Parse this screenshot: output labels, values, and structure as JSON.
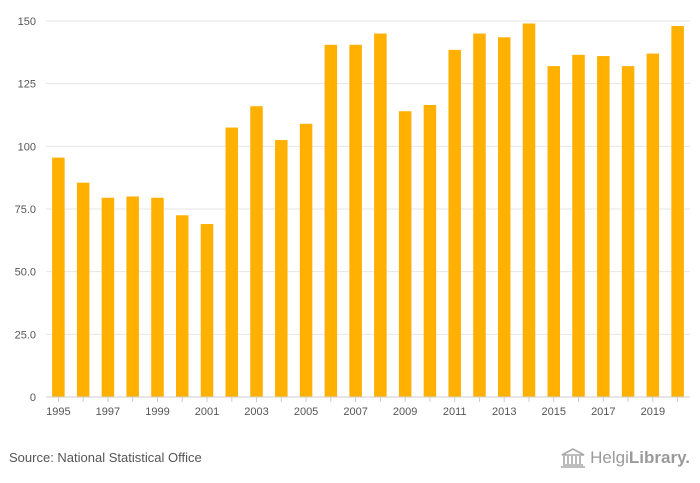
{
  "chart_data": {
    "type": "bar",
    "categories": [
      "1995",
      "1996",
      "1997",
      "1998",
      "1999",
      "2000",
      "2001",
      "2002",
      "2003",
      "2004",
      "2005",
      "2006",
      "2007",
      "2008",
      "2009",
      "2010",
      "2011",
      "2012",
      "2013",
      "2014",
      "2015",
      "2016",
      "2017",
      "2018",
      "2019",
      "2020"
    ],
    "values": [
      95.5,
      85.5,
      79.5,
      80.0,
      79.5,
      72.5,
      69.0,
      107.5,
      116.0,
      102.5,
      109.0,
      140.5,
      140.5,
      145.0,
      114.0,
      116.5,
      138.5,
      145.0,
      143.5,
      149.0,
      132.0,
      136.5,
      136.0,
      132.0,
      137.0,
      148.0
    ],
    "x_tick_labels": [
      "1995",
      "1997",
      "1999",
      "2001",
      "2003",
      "2005",
      "2007",
      "2009",
      "2011",
      "2013",
      "2015",
      "2017",
      "2019"
    ],
    "y_ticks": [
      0,
      25.0,
      50.0,
      75.0,
      100,
      125,
      150
    ],
    "y_tick_labels": [
      "0",
      "25.0",
      "50.0",
      "75.0",
      "100",
      "125",
      "150"
    ],
    "ylim": [
      0,
      150
    ],
    "title": "",
    "xlabel": "",
    "ylabel": "",
    "grid": true,
    "bar_color": "#FFB000"
  },
  "footer": {
    "source": "Source: National Statistical Office",
    "brand_part1": "Helgi",
    "brand_part2": "Library."
  }
}
